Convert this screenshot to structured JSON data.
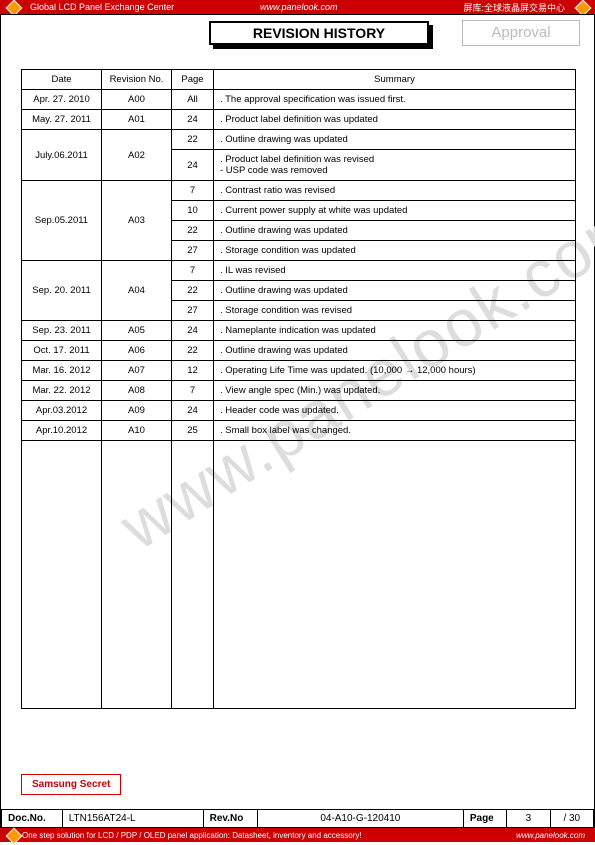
{
  "banner": {
    "top_left": "Global LCD Panel Exchange Center",
    "top_mid": "www.panelook.com",
    "top_right": "屏库:全球液晶屏交易中心",
    "bottom_left": "One step solution for LCD / PDP / OLED panel application: Datasheet, inventory and accessory!",
    "bottom_right": "www.panelook.com"
  },
  "title": "REVISION HISTORY",
  "approval": "Approval",
  "watermark": "www.panelook.com",
  "headers": {
    "date": "Date",
    "rev": "Revision No.",
    "page": "Page",
    "summary": "Summary"
  },
  "rows": [
    {
      "date": "Apr. 27. 2010",
      "rev": "A00",
      "items": [
        {
          "page": "All",
          "summary": ". The approval specification was issued first."
        }
      ]
    },
    {
      "date": "May. 27. 2011",
      "rev": "A01",
      "items": [
        {
          "page": "24",
          "summary": ". Product label definition was updated"
        }
      ]
    },
    {
      "date": "July.06.2011",
      "rev": "A02",
      "items": [
        {
          "page": "22",
          "summary": ". Outline drawing was updated"
        },
        {
          "page": "24",
          "summary": ". Product label definition was revised\n- USP code was removed"
        }
      ]
    },
    {
      "date": "Sep.05.2011",
      "rev": "A03",
      "items": [
        {
          "page": "7",
          "summary": ". Contrast ratio was revised"
        },
        {
          "page": "10",
          "summary": ". Current power supply at white was updated"
        },
        {
          "page": "22",
          "summary": ". Outline drawing was updated"
        },
        {
          "page": "27",
          "summary": ". Storage condition was updated"
        }
      ]
    },
    {
      "date": "Sep. 20. 2011",
      "rev": "A04",
      "items": [
        {
          "page": "7",
          "summary": ". IL was revised"
        },
        {
          "page": "22",
          "summary": ". Outline drawing was updated"
        },
        {
          "page": "27",
          "summary": ". Storage condition was revised"
        }
      ]
    },
    {
      "date": "Sep. 23. 2011",
      "rev": "A05",
      "items": [
        {
          "page": "24",
          "summary": ". Nameplante indication was updated"
        }
      ]
    },
    {
      "date": "Oct. 17. 2011",
      "rev": "A06",
      "items": [
        {
          "page": "22",
          "summary": ". Outline drawing was updated"
        }
      ]
    },
    {
      "date": "Mar. 16. 2012",
      "rev": "A07",
      "items": [
        {
          "page": "12",
          "summary": ". Operating Life Time was updated. (10,000 → 12,000 hours)"
        }
      ]
    },
    {
      "date": "Mar. 22. 2012",
      "rev": "A08",
      "items": [
        {
          "page": "7",
          "summary": ". View angle spec (Min.) was updated."
        }
      ]
    },
    {
      "date": "Apr.03.2012",
      "rev": "A09",
      "items": [
        {
          "page": "24",
          "summary": ". Header code was updated."
        }
      ]
    },
    {
      "date": "Apr.10.2012",
      "rev": "A10",
      "items": [
        {
          "page": "25",
          "summary": ". Small box label was changed."
        }
      ]
    }
  ],
  "secret": "Samsung Secret",
  "footer": {
    "docno_lbl": "Doc.No.",
    "docno": "LTN156AT24-L",
    "revno_lbl": "Rev.No",
    "revno": "04-A10-G-120410",
    "page_lbl": "Page",
    "page_cur": "3",
    "page_total": "/ 30"
  }
}
